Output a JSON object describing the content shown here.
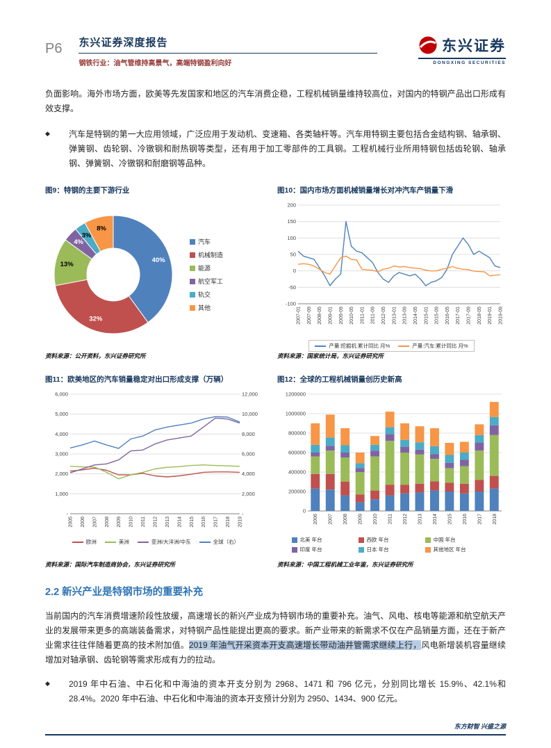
{
  "header": {
    "page_number": "P6",
    "report_type": "东兴证券深度报告",
    "report_subtitle": "钢铁行业：油气管维持高景气，高端特钢盈利向好",
    "logo_cn": "东兴证券",
    "logo_en": "DONGXING SECURITIES"
  },
  "body": {
    "para1": "负面影响。海外市场方面，欧美等先发国家和地区的汽车消费企稳，工程机械销量维持较高位，对国内的特钢产品出口形成有效支撑。",
    "bullet1_marker": "◆",
    "bullet1": "汽车是特钢的第一大应用领域，广泛应用于发动机、变速箱、各类轴杆等。汽车用特钢主要包括合金结构钢、轴承钢、弹簧钢、齿轮钢、冷镦钢和耐热钢等类型，还有用于加工零部件的工具钢。工程机械行业所用特钢包括齿轮钢、轴承钢、弹簧钢、冷镦钢和耐磨钢等品种。"
  },
  "figures": [
    {
      "title": "图9：特钢的主要下游行业",
      "source": "资料来源：公开资料，东兴证券研究所"
    },
    {
      "title": "图10：国内市场方面机械销量增长对冲汽车产销量下滑",
      "source": "资料来源：国家统计局，东兴证券研究所"
    },
    {
      "title": "图11：欧美地区的汽车销量稳定对出口形成支撑（万辆）",
      "source": "资料来源：国际汽车制造商协会，东兴证券研究所"
    },
    {
      "title": "图12：全球的工程机械销量创历史新高",
      "source": "资料来源：中国工程机械工业年鉴，东兴证券研究所"
    }
  ],
  "section": {
    "number_title": "2.2 新兴产业是特钢市场的重要补充",
    "para_seg1": "当前国内的汽车消费增速阶段性放缓，高速增长的新兴产业成为特钢市场的重要补充。油气、风电、核电等能源和航空航天产业的发展带来更多的高端装备需求，对特钢产品性能提出更高的要求。新产业带来的新需求不仅在产品销量方面，还在于新产业需求往往伴随着更高的技术附加值。",
    "para_seg2_highlight": "2019 年油气开采资本开支高速增长带动油井管需求继续上行，",
    "para_seg3": "风电新增装机容量继续增加对轴承钢、齿轮钢等需求形成有力的拉动。",
    "bullet_marker": "◆",
    "bullet": "2019 年中石油、中石化和中海油的资本开支分别为 2968、1471 和 796 亿元，分别同比增长 15.9%、42.1%和 28.4%。2020 年中石油、中石化和中海油的资本开支预计分别为 2950、1434、900 亿元。"
  },
  "footer": {
    "slogan": "东方财智 兴盛之源"
  },
  "chart_data": [
    {
      "id": "fig9",
      "type": "pie",
      "title": "特钢的主要下游行业",
      "labels": [
        "汽车",
        "机械制造",
        "能源",
        "航空军工",
        "轨交",
        "其他"
      ],
      "values": [
        40,
        32,
        13,
        4,
        3,
        8
      ],
      "value_labels": [
        "40%",
        "32%",
        "13%",
        "4%",
        "3%",
        "8%"
      ],
      "colors": [
        "#4F81BD",
        "#C0504D",
        "#9BBB59",
        "#8064A2",
        "#4BACC6",
        "#F79646"
      ],
      "value_label_colors": [
        "#FFFFFF",
        "#FFFFFF",
        "#000000",
        "#FFFFFF",
        "#000000",
        "#000000"
      ],
      "donut": true,
      "legend_position": "right"
    },
    {
      "id": "fig10",
      "type": "line",
      "title": "国内市场方面机械销量增长对冲汽车产销量下滑",
      "left_axis": {
        "min": -100,
        "max": 200,
        "step": 50
      },
      "x_tick_every": 2,
      "x": [
        "2007-01",
        "2007-05",
        "2007-09",
        "2008-01",
        "2008-05",
        "2008-09",
        "2009-01",
        "2009-05",
        "2009-09",
        "2010-01",
        "2010-05",
        "2010-09",
        "2011-01",
        "2011-05",
        "2011-09",
        "2012-01",
        "2012-05",
        "2012-09",
        "2013-01",
        "2013-05",
        "2013-09",
        "2014-01",
        "2014-05",
        "2014-09",
        "2015-01",
        "2015-05",
        "2015-09",
        "2016-01",
        "2016-05",
        "2016-09",
        "2017-01",
        "2017-05",
        "2017-09",
        "2018-01",
        "2018-05",
        "2018-09",
        "2019-01",
        "2019-05",
        "2019-09"
      ],
      "series": [
        {
          "name": "产量:挖掘机:累计同比 月%",
          "color": "#4F81BD",
          "values": [
            60,
            45,
            40,
            35,
            10,
            -15,
            -45,
            -25,
            -10,
            150,
            75,
            60,
            55,
            40,
            25,
            -5,
            -25,
            -35,
            -15,
            -5,
            -10,
            -15,
            -10,
            -25,
            -45,
            -35,
            -30,
            -20,
            5,
            50,
            75,
            100,
            80,
            50,
            60,
            50,
            40,
            15,
            10
          ]
        },
        {
          "name": "产量:汽车:累计同比 月%",
          "color": "#F79646",
          "values": [
            20,
            22,
            20,
            15,
            5,
            -5,
            -10,
            15,
            40,
            45,
            35,
            33,
            5,
            3,
            2,
            -3,
            5,
            8,
            15,
            12,
            13,
            10,
            8,
            7,
            2,
            0,
            0,
            5,
            8,
            13,
            8,
            5,
            4,
            -1,
            -2,
            -3,
            -15,
            -13,
            -12
          ]
        }
      ],
      "legend_position": "bottom"
    },
    {
      "id": "fig11",
      "type": "line",
      "title": "欧美地区的汽车销量稳定对出口形成支撑（万辆）",
      "left_axis": {
        "min": 0,
        "max": 6000,
        "step": 1000,
        "labels": [
          "-",
          "1,000",
          "2,000",
          "3,000",
          "4,000",
          "5,000",
          "6,000"
        ]
      },
      "right_axis": {
        "min": 0,
        "max": 12000,
        "step": 2000,
        "labels": [
          "-",
          "2,000",
          "4,000",
          "6,000",
          "8,000",
          "10,000",
          "12,000"
        ]
      },
      "x_tick_every": 1,
      "x": [
        "2005",
        "2006",
        "2007",
        "2008",
        "2009",
        "2010",
        "2011",
        "2012",
        "2013",
        "2014",
        "2015",
        "2016",
        "2017",
        "2018",
        "2019"
      ],
      "series": [
        {
          "name": "欧洲",
          "color": "#C0504D",
          "axis": "left",
          "values": [
            2140,
            2200,
            2280,
            2180,
            1950,
            1950,
            2030,
            1900,
            1850,
            1900,
            1980,
            2080,
            2100,
            2100,
            2080
          ]
        },
        {
          "name": "美洲",
          "color": "#9BBB59",
          "axis": "left",
          "values": [
            2380,
            2350,
            2340,
            2080,
            1750,
            1950,
            2080,
            2250,
            2330,
            2360,
            2420,
            2450,
            2420,
            2400,
            2380
          ]
        },
        {
          "name": "亚洲/大洋洲/中东",
          "color": "#8064A2",
          "axis": "left",
          "values": [
            2050,
            2250,
            2450,
            2500,
            2700,
            3150,
            3200,
            3500,
            3700,
            3800,
            3900,
            4350,
            4800,
            4750,
            4550
          ]
        },
        {
          "name": "全球（右）",
          "color": "#4F81BD",
          "axis": "right",
          "values": [
            6600,
            6900,
            7300,
            6900,
            6550,
            7500,
            7800,
            8400,
            8700,
            8900,
            9100,
            9500,
            9750,
            9700,
            9200
          ]
        }
      ],
      "legend_position": "bottom"
    },
    {
      "id": "fig12",
      "type": "stacked_bar",
      "title": "全球的工程机械销量创历史新高",
      "left_axis": {
        "min": 0,
        "max": 1200000,
        "step": 200000
      },
      "x": [
        "2006",
        "2007",
        "2008",
        "2009",
        "2010",
        "2011",
        "2012",
        "2013",
        "2014",
        "2015",
        "2016",
        "2017",
        "2018"
      ],
      "series": [
        {
          "name": "北美 年台",
          "color": "#4F81BD",
          "values": [
            230000,
            220000,
            160000,
            90000,
            120000,
            160000,
            180000,
            190000,
            210000,
            200000,
            180000,
            200000,
            230000
          ]
        },
        {
          "name": "西欧 年台",
          "color": "#C0504D",
          "values": [
            150000,
            160000,
            140000,
            80000,
            90000,
            110000,
            90000,
            90000,
            95000,
            90000,
            100000,
            120000,
            130000
          ]
        },
        {
          "name": "中国 年台",
          "color": "#9BBB59",
          "values": [
            180000,
            240000,
            250000,
            230000,
            350000,
            450000,
            330000,
            300000,
            230000,
            150000,
            180000,
            300000,
            420000
          ]
        },
        {
          "name": "印度 年台",
          "color": "#8064A2",
          "values": [
            40000,
            50000,
            50000,
            40000,
            60000,
            70000,
            60000,
            50000,
            50000,
            55000,
            65000,
            80000,
            100000
          ]
        },
        {
          "name": "日本 年台",
          "color": "#4BACC6",
          "values": [
            80000,
            85000,
            75000,
            50000,
            60000,
            70000,
            70000,
            75000,
            80000,
            80000,
            75000,
            80000,
            85000
          ]
        },
        {
          "name": "其他地区 年台",
          "color": "#F79646",
          "values": [
            220000,
            235000,
            175000,
            110000,
            90000,
            160000,
            170000,
            165000,
            185000,
            125000,
            110000,
            110000,
            155000
          ]
        }
      ],
      "legend_position": "bottom"
    }
  ]
}
